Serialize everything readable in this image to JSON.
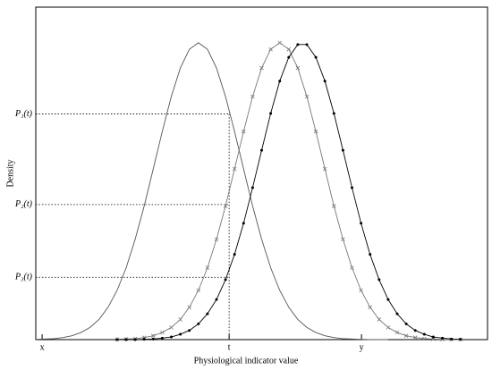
{
  "chart_data": {
    "type": "line",
    "x_label": "Physiological indicator value",
    "y_label": "Density",
    "xlim": [
      0,
      100
    ],
    "ylim": [
      0,
      1.12
    ],
    "xticks": [
      {
        "value": 1.4,
        "label": "x"
      },
      {
        "value": 42.8,
        "label": "t"
      },
      {
        "value": 72.1,
        "label": "y"
      }
    ],
    "yticks": [
      {
        "value": 0.76,
        "label": "P₁(t)"
      },
      {
        "value": 0.455,
        "label": "P₂(t)"
      },
      {
        "value": 0.21,
        "label": "P₃(t)"
      }
    ],
    "x": [
      0,
      2,
      4,
      6,
      8,
      10,
      12,
      14,
      16,
      18,
      20,
      22,
      24,
      26,
      28,
      30,
      32,
      34,
      36,
      38,
      40,
      42,
      44,
      46,
      48,
      50,
      52,
      54,
      56,
      58,
      60,
      62,
      64,
      66,
      68,
      70,
      72,
      74,
      76,
      78,
      80,
      82,
      84,
      86,
      88,
      90,
      92,
      94,
      96
    ],
    "series": [
      {
        "color": "#555555",
        "marker": "none",
        "values": [
          0.001,
          0.002,
          0.003,
          0.007,
          0.013,
          0.024,
          0.041,
          0.068,
          0.109,
          0.166,
          0.242,
          0.338,
          0.45,
          0.575,
          0.701,
          0.819,
          0.915,
          0.978,
          1,
          0.978,
          0.915,
          0.819,
          0.701,
          0.575,
          0.45,
          0.338,
          0.242,
          0.166,
          0.109,
          0.068,
          0.041,
          0.024,
          0.013,
          0.007,
          0.003,
          0.002,
          0.001,
          0,
          0,
          0,
          null,
          null,
          null,
          null,
          null,
          null,
          null,
          null,
          null
        ]
      },
      {
        "color": "#777777",
        "marker": "x",
        "values": [
          null,
          null,
          null,
          null,
          null,
          null,
          null,
          null,
          null,
          0.001,
          0.002,
          0.003,
          0.007,
          0.013,
          0.024,
          0.041,
          0.068,
          0.109,
          0.166,
          0.242,
          0.338,
          0.45,
          0.575,
          0.701,
          0.819,
          0.915,
          0.978,
          1,
          0.978,
          0.915,
          0.819,
          0.701,
          0.575,
          0.45,
          0.338,
          0.242,
          0.166,
          0.109,
          0.068,
          0.041,
          0.024,
          0.013,
          0.007,
          0.003,
          0.002,
          0.001,
          0,
          0,
          null
        ]
      },
      {
        "color": "#000000",
        "marker": "dot",
        "values": [
          null,
          null,
          null,
          null,
          null,
          null,
          null,
          null,
          null,
          0,
          0,
          0,
          0.001,
          0.002,
          0.005,
          0.009,
          0.018,
          0.031,
          0.053,
          0.087,
          0.135,
          0.202,
          0.287,
          0.392,
          0.512,
          0.638,
          0.762,
          0.871,
          0.951,
          0.994,
          0.994,
          0.951,
          0.871,
          0.762,
          0.638,
          0.512,
          0.392,
          0.287,
          0.202,
          0.135,
          0.087,
          0.053,
          0.031,
          0.018,
          0.009,
          0.005,
          0.002,
          0.001,
          null
        ]
      }
    ]
  }
}
